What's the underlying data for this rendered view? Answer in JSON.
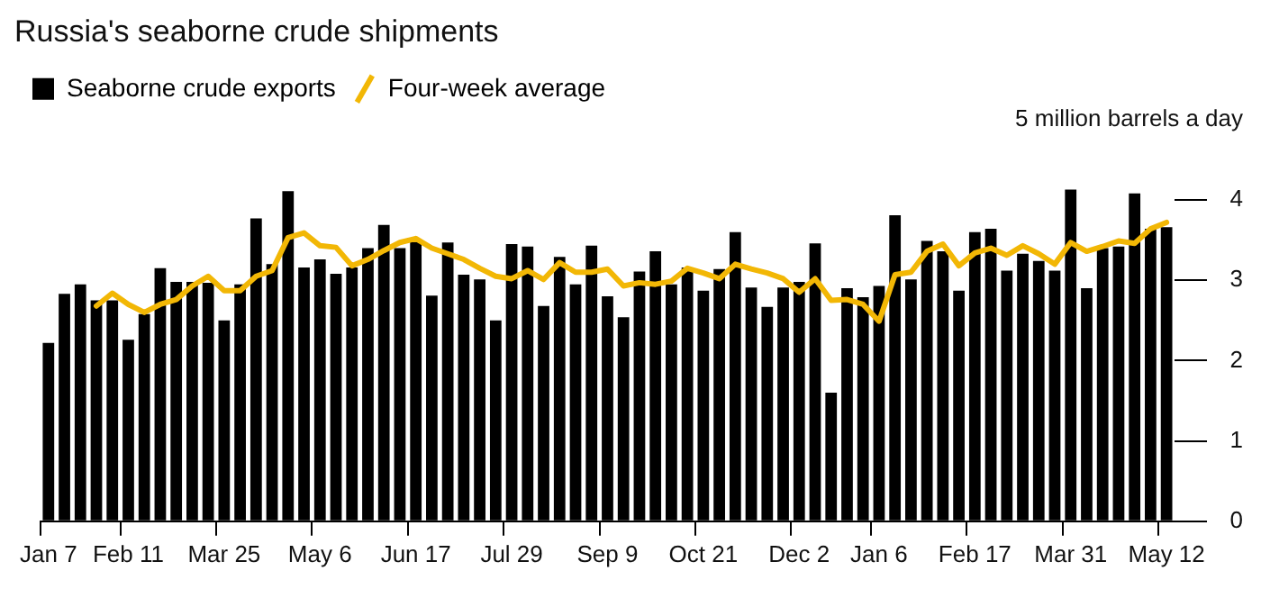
{
  "chart_data": {
    "type": "bar",
    "title": "Russia's seaborne crude shipments",
    "categories": [
      "Jan 7",
      null,
      null,
      null,
      null,
      "Feb 11",
      null,
      null,
      null,
      null,
      null,
      "Mar 25",
      null,
      null,
      null,
      null,
      null,
      "May 6",
      null,
      null,
      null,
      null,
      null,
      "Jun 17",
      null,
      null,
      null,
      null,
      null,
      "Jul 29",
      null,
      null,
      null,
      null,
      null,
      "Sep 9",
      null,
      null,
      null,
      null,
      null,
      "Oct 21",
      null,
      null,
      null,
      null,
      null,
      "Dec 2",
      null,
      null,
      null,
      null,
      "Jan 6",
      null,
      null,
      null,
      null,
      null,
      "Feb 17",
      null,
      null,
      null,
      null,
      null,
      "Mar 31",
      null,
      null,
      null,
      null,
      null,
      "May 12"
    ],
    "series": [
      {
        "name": "Seaborne crude exports",
        "color": "#000000",
        "values": [
          2.22,
          2.83,
          2.95,
          2.75,
          2.75,
          2.26,
          2.58,
          3.15,
          2.98,
          2.98,
          2.97,
          2.5,
          2.95,
          3.77,
          3.2,
          4.11,
          3.16,
          3.26,
          3.08,
          3.16,
          3.4,
          3.69,
          3.4,
          3.49,
          2.81,
          3.47,
          3.07,
          3.01,
          2.5,
          3.45,
          3.42,
          2.68,
          3.29,
          2.95,
          3.43,
          2.8,
          2.54,
          3.11,
          3.36,
          2.95,
          3.16,
          2.87,
          3.14,
          3.6,
          2.91,
          2.67,
          2.91,
          2.98,
          3.46,
          1.6,
          2.9,
          2.79,
          2.93,
          3.81,
          3.01,
          3.49,
          3.36,
          2.87,
          3.6,
          3.64,
          3.12,
          3.33,
          3.24,
          3.12,
          4.13,
          2.9,
          3.4,
          3.42,
          4.08,
          3.64,
          3.66
        ]
      },
      {
        "name": "Four-week average",
        "type": "line",
        "color": "#f2b705",
        "values": [
          null,
          null,
          null,
          2.68,
          2.84,
          2.7,
          2.6,
          2.7,
          2.76,
          2.93,
          3.05,
          2.87,
          2.87,
          3.05,
          3.12,
          3.53,
          3.59,
          3.43,
          3.41,
          3.18,
          3.26,
          3.37,
          3.47,
          3.52,
          3.4,
          3.33,
          3.26,
          3.15,
          3.05,
          3.02,
          3.12,
          3.01,
          3.22,
          3.1,
          3.1,
          3.14,
          2.93,
          2.97,
          2.95,
          2.99,
          3.15,
          3.09,
          3.02,
          3.2,
          3.14,
          3.09,
          3.02,
          2.85,
          3.02,
          2.75,
          2.76,
          2.7,
          2.49,
          3.07,
          3.1,
          3.36,
          3.45,
          3.18,
          3.34,
          3.4,
          3.31,
          3.43,
          3.33,
          3.2,
          3.47,
          3.36,
          3.42,
          3.49,
          3.46,
          3.64,
          3.72
        ]
      }
    ],
    "ylim": [
      0,
      5
    ],
    "yticks": [
      0,
      1,
      2,
      3,
      4,
      {
        "value": 5,
        "label": "5 million barrels a day"
      }
    ],
    "legend": "top left",
    "marker": "none",
    "line_style": "solid"
  }
}
